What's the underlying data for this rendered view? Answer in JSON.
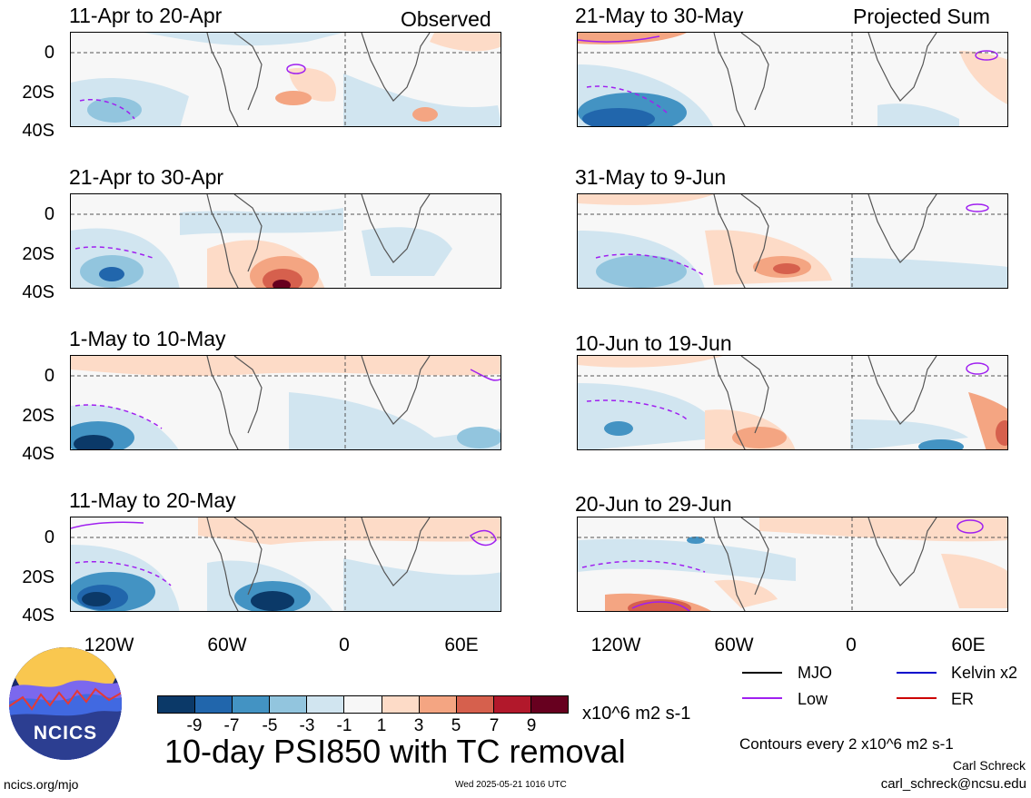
{
  "header": {
    "left_label": "Observed",
    "right_label": "Projected Sum"
  },
  "panels_left": [
    {
      "date": "11-Apr to 20-Apr"
    },
    {
      "date": "21-Apr to 30-Apr"
    },
    {
      "date": "1-May to 10-May"
    },
    {
      "date": "11-May to 20-May"
    }
  ],
  "panels_right": [
    {
      "date": "21-May to 30-May"
    },
    {
      "date": "31-May to 9-Jun"
    },
    {
      "date": "10-Jun to 19-Jun"
    },
    {
      "date": "20-Jun to 29-Jun"
    }
  ],
  "axes": {
    "lat_labels": [
      "0",
      "20S",
      "40S"
    ],
    "lon_labels": [
      "120W",
      "60W",
      "0",
      "60E"
    ]
  },
  "colorbar": {
    "ticks": [
      "-9",
      "-7",
      "-5",
      "-3",
      "-1",
      "1",
      "3",
      "5",
      "7",
      "9"
    ],
    "units": "x10^6 m2 s-1",
    "colors": [
      "#0b3968",
      "#2166ac",
      "#4393c3",
      "#92c5de",
      "#d1e5f0",
      "#f7f7f7",
      "#fddbc7",
      "#f4a582",
      "#d6604d",
      "#b2182b",
      "#67001f"
    ]
  },
  "title": "10-day PSI850 with TC removal",
  "legend": {
    "mjo": "MJO",
    "kelvin": "Kelvin x2",
    "low": "Low",
    "er": "ER",
    "colors": {
      "mjo": "#000000",
      "kelvin": "#0000cc",
      "low": "#a020f0",
      "er": "#cc0000"
    },
    "contours_note": "Contours every 2 x10^6 m2 s-1"
  },
  "credits": {
    "author": "Carl Schreck",
    "email": "carl_schreck@ncsu.edu",
    "website": "ncics.org/mjo",
    "timestamp": "Wed 2025-05-21 1016 UTC",
    "logo_text": "NCICS"
  }
}
